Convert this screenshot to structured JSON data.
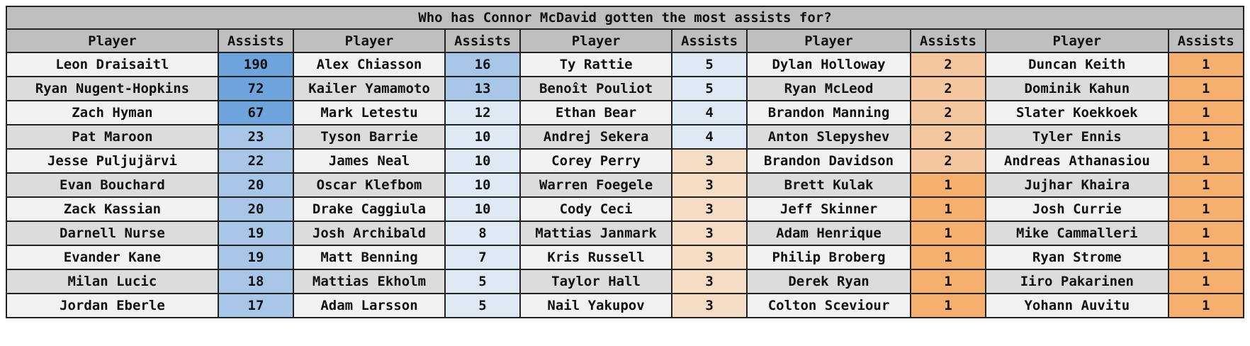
{
  "chart_data": {
    "type": "table",
    "title": "Who has Connor McDavid gotten the most assists for?",
    "columns": [
      "Player",
      "Assists"
    ],
    "rows": [
      {
        "player": "Leon Draisaitl",
        "assists": 190
      },
      {
        "player": "Ryan Nugent-Hopkins",
        "assists": 72
      },
      {
        "player": "Zach Hyman",
        "assists": 67
      },
      {
        "player": "Pat Maroon",
        "assists": 23
      },
      {
        "player": "Jesse Puljujärvi",
        "assists": 22
      },
      {
        "player": "Evan Bouchard",
        "assists": 20
      },
      {
        "player": "Zack Kassian",
        "assists": 20
      },
      {
        "player": "Darnell Nurse",
        "assists": 19
      },
      {
        "player": "Evander Kane",
        "assists": 19
      },
      {
        "player": "Milan Lucic",
        "assists": 18
      },
      {
        "player": "Jordan Eberle",
        "assists": 17
      },
      {
        "player": "Alex Chiasson",
        "assists": 16
      },
      {
        "player": "Kailer Yamamoto",
        "assists": 13
      },
      {
        "player": "Mark Letestu",
        "assists": 12
      },
      {
        "player": "Tyson Barrie",
        "assists": 10
      },
      {
        "player": "James Neal",
        "assists": 10
      },
      {
        "player": "Oscar Klefbom",
        "assists": 10
      },
      {
        "player": "Drake Caggiula",
        "assists": 10
      },
      {
        "player": "Josh Archibald",
        "assists": 8
      },
      {
        "player": "Matt Benning",
        "assists": 7
      },
      {
        "player": "Mattias Ekholm",
        "assists": 5
      },
      {
        "player": "Adam Larsson",
        "assists": 5
      },
      {
        "player": "Ty Rattie",
        "assists": 5
      },
      {
        "player": "Benoît Pouliot",
        "assists": 5
      },
      {
        "player": "Ethan Bear",
        "assists": 4
      },
      {
        "player": "Andrej Sekera",
        "assists": 4
      },
      {
        "player": "Corey Perry",
        "assists": 3
      },
      {
        "player": "Warren Foegele",
        "assists": 3
      },
      {
        "player": "Cody Ceci",
        "assists": 3
      },
      {
        "player": "Mattias Janmark",
        "assists": 3
      },
      {
        "player": "Kris Russell",
        "assists": 3
      },
      {
        "player": "Taylor Hall",
        "assists": 3
      },
      {
        "player": "Nail Yakupov",
        "assists": 3
      },
      {
        "player": "Dylan Holloway",
        "assists": 2
      },
      {
        "player": "Ryan McLeod",
        "assists": 2
      },
      {
        "player": "Brandon Manning",
        "assists": 2
      },
      {
        "player": "Anton Slepyshev",
        "assists": 2
      },
      {
        "player": "Brandon Davidson",
        "assists": 2
      },
      {
        "player": "Brett Kulak",
        "assists": 1
      },
      {
        "player": "Jeff Skinner",
        "assists": 1
      },
      {
        "player": "Adam Henrique",
        "assists": 1
      },
      {
        "player": "Philip Broberg",
        "assists": 1
      },
      {
        "player": "Derek Ryan",
        "assists": 1
      },
      {
        "player": "Colton Sceviour",
        "assists": 1
      },
      {
        "player": "Duncan Keith",
        "assists": 1
      },
      {
        "player": "Dominik Kahun",
        "assists": 1
      },
      {
        "player": "Slater Koekkoek",
        "assists": 1
      },
      {
        "player": "Tyler Ennis",
        "assists": 1
      },
      {
        "player": "Andreas Athanasiou",
        "assists": 1
      },
      {
        "player": "Jujhar Khaira",
        "assists": 1
      },
      {
        "player": "Josh Currie",
        "assists": 1
      },
      {
        "player": "Mike Cammalleri",
        "assists": 1
      },
      {
        "player": "Ryan Strome",
        "assists": 1
      },
      {
        "player": "Iiro Pakarinen",
        "assists": 1
      },
      {
        "player": "Yohann Auvitu",
        "assists": 1
      }
    ],
    "grid": true,
    "colors": {
      "high": "#6fa3dc",
      "mid_blue": "#a7c6e8",
      "light_blue": "#dfe9f3",
      "light_orange": "#f5dcc5",
      "mid_orange": "#f5c7a0",
      "high_orange": "#f5b070",
      "header_bg": "#bfbfbf"
    }
  }
}
